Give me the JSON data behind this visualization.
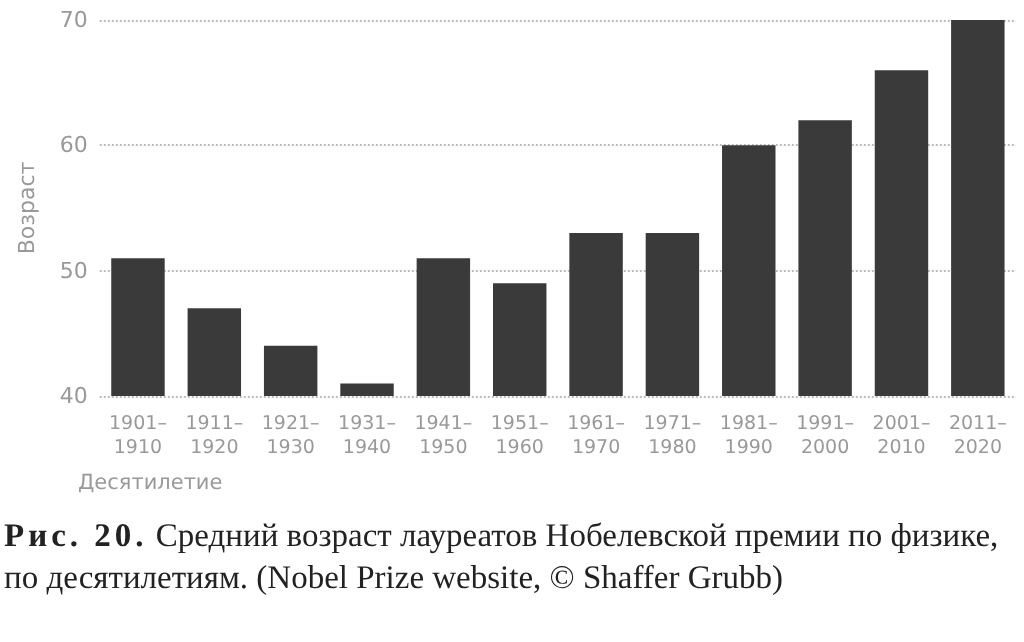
{
  "chart_data": {
    "type": "bar",
    "title": "Рис. 20.",
    "annotations": [
      "Средний возраст лауреатов Нобелевской премии по физике, по десятилетиям. (Nobel Prize website, © Shaffer Grubb)"
    ],
    "xlabel": "Десятилетие",
    "ylabel": "Возраст",
    "categories": [
      "1901–\n1910",
      "1911–\n1920",
      "1921–\n1930",
      "1931–\n1940",
      "1941–\n1950",
      "1951–\n1960",
      "1961–\n1970",
      "1971–\n1980",
      "1981–\n1990",
      "1991–\n2000",
      "2001–\n2010",
      "2011–\n2020"
    ],
    "values": [
      51,
      47,
      44,
      41,
      51,
      49,
      53,
      53,
      60,
      62,
      66,
      70
    ],
    "color": "#3a3a3a",
    "ylim": [
      40,
      70
    ],
    "yticks": [
      40,
      50,
      60,
      70
    ],
    "grid": "y"
  }
}
